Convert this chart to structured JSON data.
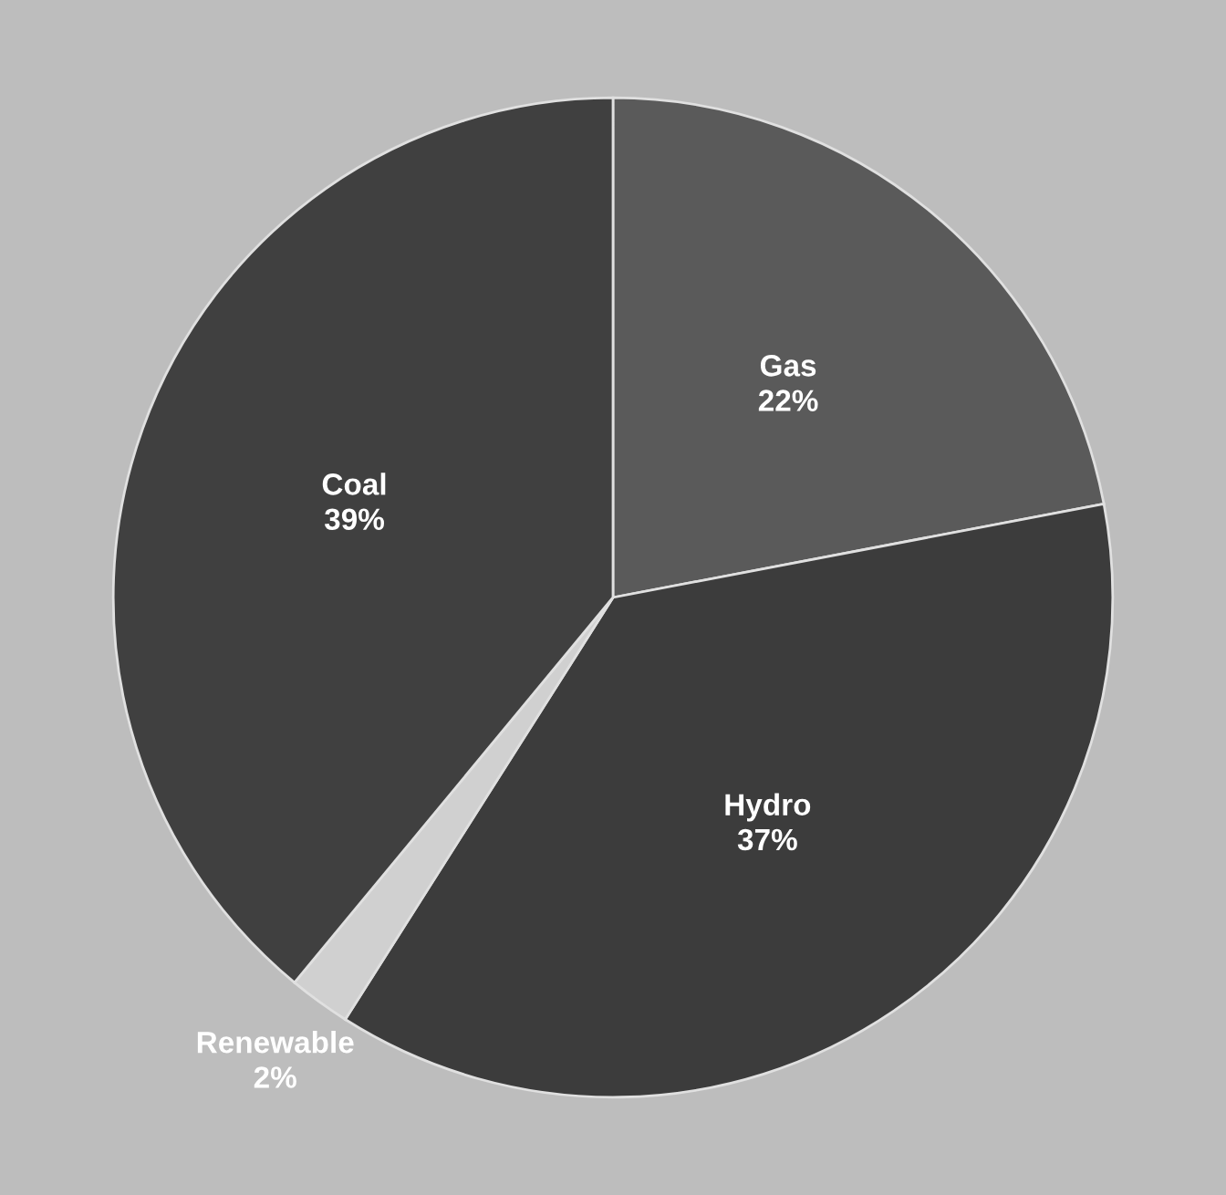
{
  "chart_data": {
    "type": "pie",
    "categories": [
      "Gas",
      "Hydro",
      "Renewable",
      "Coal"
    ],
    "values": [
      22,
      37,
      2,
      39
    ],
    "value_labels": [
      "22%",
      "37%",
      "2%",
      "39%"
    ],
    "colors": [
      "#5a5a5a",
      "#3c3c3c",
      "#d0d0d0",
      "#404040"
    ],
    "legend": false
  }
}
